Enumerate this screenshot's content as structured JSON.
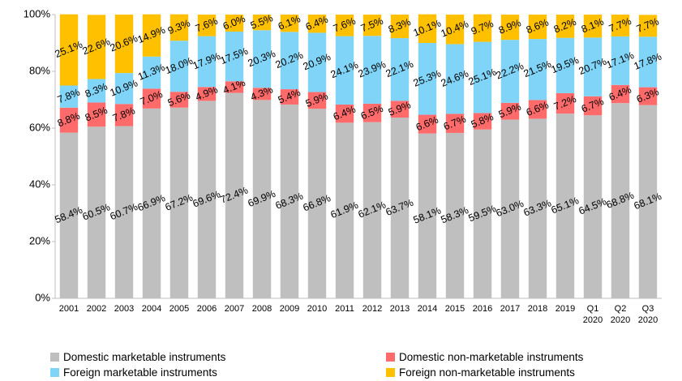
{
  "chart_data": {
    "type": "stacked_bar",
    "categories": [
      "2001",
      "2002",
      "2003",
      "2004",
      "2005",
      "2006",
      "2007",
      "2008",
      "2009",
      "2010",
      "2011",
      "2012",
      "2013",
      "2014",
      "2015",
      "2016",
      "2017",
      "2018",
      "2019",
      "Q1 2020",
      "Q2 2020",
      "Q3 2020"
    ],
    "series": [
      {
        "name": "Domestic marketable instruments",
        "color": "#bfbfbf",
        "values": [
          58.4,
          60.5,
          60.7,
          66.9,
          67.2,
          69.6,
          72.4,
          69.9,
          68.3,
          66.8,
          61.9,
          62.1,
          63.7,
          58.1,
          58.3,
          59.5,
          63.0,
          63.3,
          65.1,
          64.5,
          68.8,
          68.1
        ],
        "value_labels": [
          "58.4%",
          "60.5%",
          "60.7%",
          "66.9%",
          "67.2%",
          "69.6%",
          "72.4%",
          "69.9%",
          "68.3%",
          "66.8%",
          "61.9%",
          "62.1%",
          "63.7%",
          "58.1%",
          "58.3%",
          "59.5%",
          "63.0%",
          "63.3%",
          "65.1%",
          "64.5%",
          "68.8%",
          "68.1%"
        ]
      },
      {
        "name": "Domestic non-marketable instruments",
        "color": "#ff6b6b",
        "values": [
          8.8,
          8.5,
          7.8,
          7.0,
          5.6,
          4.9,
          4.1,
          4.3,
          5.4,
          5.9,
          6.4,
          6.5,
          5.9,
          6.6,
          6.7,
          5.8,
          5.9,
          6.6,
          7.2,
          6.7,
          6.4,
          6.3
        ],
        "value_labels": [
          "8.8%",
          "8.5%",
          "7.8%",
          "7.0%",
          "5.6%",
          "4.9%",
          "4.1%",
          "4.3%",
          "5.4%",
          "5.9%",
          "6.4%",
          "6.5%",
          "5.9%",
          "6.6%",
          "6.7%",
          "5.8%",
          "5.9%",
          "6.6%",
          "7.2%",
          "6.7%",
          "6.4%",
          "6.3%"
        ]
      },
      {
        "name": "Foreign marketable instruments",
        "color": "#80d4f7",
        "values": [
          7.8,
          8.3,
          10.9,
          11.3,
          18.0,
          17.9,
          17.5,
          20.3,
          20.2,
          20.9,
          24.1,
          23.9,
          22.1,
          25.3,
          24.6,
          25.1,
          22.2,
          21.5,
          19.5,
          20.7,
          17.1,
          17.8
        ],
        "value_labels": [
          "7.8%",
          "8.3%",
          "10.9%",
          "11.3%",
          "18.0%",
          "17.9%",
          "17.5%",
          "20.3%",
          "20.2%",
          "20.9%",
          "24.1%",
          "23.9%",
          "22.1%",
          "25.3%",
          "24.6%",
          "25.1%",
          "22.2%",
          "21.5%",
          "19.5%",
          "20.7%",
          "17.1%",
          "17.8%"
        ]
      },
      {
        "name": "Foreign non-marketable instruments",
        "color": "#ffc000",
        "values": [
          25.1,
          22.6,
          20.6,
          14.9,
          9.3,
          7.6,
          6.0,
          5.5,
          6.1,
          6.4,
          7.6,
          7.5,
          8.3,
          10.1,
          10.4,
          9.7,
          8.9,
          8.6,
          8.2,
          8.1,
          7.7,
          7.7
        ],
        "value_labels": [
          "25.1%",
          "22.6%",
          "20.6%",
          "14.9%",
          "9.3%",
          "7.6%",
          "6.0%",
          "5.5%",
          "6.1%",
          "6.4%",
          "7.6%",
          "7.5%",
          "8.3%",
          "10.1%",
          "10.4%",
          "9.7%",
          "8.9%",
          "8.6%",
          "8.2%",
          "8.1%",
          "7.7%",
          "7.7%"
        ]
      }
    ],
    "ylim": [
      0,
      100
    ],
    "yticks": [
      {
        "value": 0,
        "label": "0%"
      },
      {
        "value": 20,
        "label": "20%"
      },
      {
        "value": 40,
        "label": "40%"
      },
      {
        "value": 60,
        "label": "60%"
      },
      {
        "value": 80,
        "label": "80%"
      },
      {
        "value": 100,
        "label": "100%"
      }
    ],
    "legend": "bottom"
  }
}
